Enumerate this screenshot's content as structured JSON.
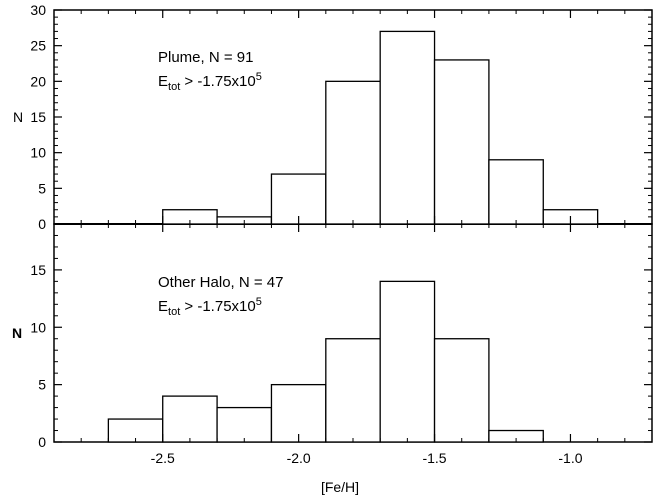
{
  "chart_data": [
    {
      "type": "bar",
      "panel": "top",
      "bin_width": 0.2,
      "bin_left_edges": [
        -2.5,
        -2.3,
        -2.1,
        -1.9,
        -1.7,
        -1.5,
        -1.3,
        -1.1
      ],
      "values": [
        2,
        1,
        7,
        20,
        27,
        23,
        9,
        2
      ],
      "xlim": [
        -2.9,
        -0.7
      ],
      "ylim": [
        0,
        30
      ],
      "yticks": [
        "0",
        "5",
        "10",
        "15",
        "20",
        "25",
        "30"
      ],
      "ytick_values": [
        0,
        5,
        10,
        15,
        20,
        25,
        30
      ],
      "ylabel": "N",
      "annotation": {
        "line1": "Plume, N = 91",
        "line2_main": "E",
        "line2_sub": "tot",
        "line2_rest": " > -1.75x10",
        "line2_sup": "5"
      }
    },
    {
      "type": "bar",
      "panel": "bottom",
      "bin_width": 0.2,
      "bin_left_edges": [
        -2.7,
        -2.5,
        -2.3,
        -2.1,
        -1.9,
        -1.7,
        -1.5,
        -1.3
      ],
      "values": [
        2,
        4,
        3,
        5,
        9,
        14,
        9,
        1
      ],
      "xlim": [
        -2.9,
        -0.7
      ],
      "ylim": [
        0,
        19
      ],
      "yticks": [
        "0",
        "5",
        "10",
        "15"
      ],
      "ytick_values": [
        0,
        5,
        10,
        15
      ],
      "xticks": [
        "-2.5",
        "-2.0",
        "-1.5",
        "-1.0"
      ],
      "xtick_values": [
        -2.5,
        -2.0,
        -1.5,
        -1.0
      ],
      "xlabel": "[Fe/H]",
      "ylabel": "N",
      "annotation": {
        "line1": "Other Halo, N = 47",
        "line2_main": "E",
        "line2_sub": "tot",
        "line2_rest": " > -1.75x10",
        "line2_sup": "5"
      }
    }
  ]
}
